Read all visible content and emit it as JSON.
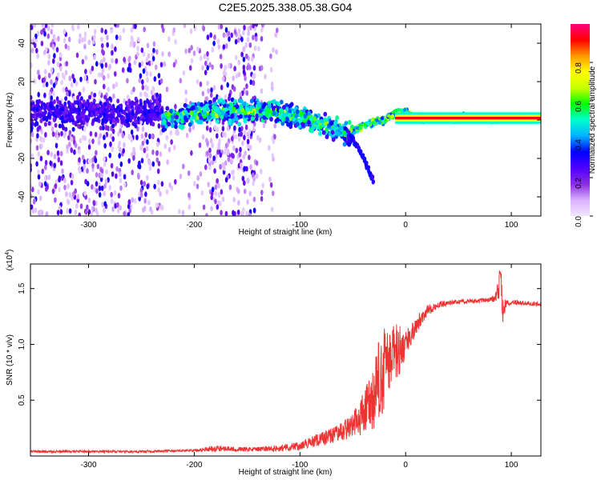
{
  "chart_data": [
    {
      "type": "heatmap",
      "title": "C2E5.2025.338.05.38.G04",
      "xlabel": "Height of straight line (km)",
      "ylabel": "Frequency (Hz)",
      "xlim": [
        -355,
        128
      ],
      "ylim": [
        -50,
        50
      ],
      "xticks": [
        -300,
        -200,
        -100,
        0,
        100
      ],
      "yticks": [
        -40,
        -20,
        0,
        20,
        40
      ],
      "colorbar": {
        "label": "Normalized spectral amplitude",
        "range": [
          0,
          1
        ],
        "ticks": [
          "0.0",
          "0.2",
          "0.4",
          "0.6",
          "0.8"
        ],
        "colors": [
          "#f0e6ff",
          "#d9b0ff",
          "#8a2be2",
          "#5000ff",
          "#0000ff",
          "#00b0ff",
          "#00ffd0",
          "#00ff00",
          "#c8ff00",
          "#ffff00",
          "#ff9900",
          "#ff0000",
          "#ff0080"
        ]
      },
      "ridge": {
        "x": [
          -230,
          -200,
          -170,
          -140,
          -110,
          -90,
          -70,
          -55,
          -45,
          -30,
          -20,
          -10,
          0,
          10,
          50,
          90,
          128
        ],
        "y": [
          1,
          3,
          4,
          5,
          3,
          0,
          -4,
          -8,
          -4,
          -1,
          0,
          3,
          4,
          1,
          1,
          1,
          1
        ],
        "peak_amplitude": 1.0
      },
      "tail": {
        "x": [
          -55,
          -50,
          -45,
          -40,
          -35,
          -30
        ],
        "y": [
          -8,
          -10,
          -14,
          -20,
          -26,
          -32
        ]
      }
    },
    {
      "type": "line",
      "xlabel": "Height of straight line (km)",
      "ylabel": "SNR (10 * v/v)",
      "y_scale_label": "(x10",
      "y_scale_exponent": "4",
      "xlim": [
        -355,
        128
      ],
      "ylim": [
        0,
        1.72
      ],
      "xticks": [
        -300,
        -200,
        -100,
        0,
        100
      ],
      "yticks": [
        "0.5",
        "1.0",
        "1.5"
      ],
      "series": [
        {
          "name": "SNR",
          "color": "#ee3333",
          "x": [
            -355,
            -300,
            -250,
            -200,
            -180,
            -160,
            -140,
            -120,
            -100,
            -80,
            -60,
            -50,
            -40,
            -30,
            -25,
            -20,
            -15,
            -10,
            -5,
            0,
            5,
            10,
            20,
            30,
            40,
            50,
            60,
            70,
            80,
            85,
            88,
            90,
            92,
            95,
            100,
            110,
            120,
            128
          ],
          "y": [
            0.04,
            0.04,
            0.04,
            0.05,
            0.07,
            0.06,
            0.06,
            0.07,
            0.09,
            0.15,
            0.22,
            0.28,
            0.38,
            0.5,
            0.7,
            0.78,
            0.85,
            0.92,
            0.96,
            1.0,
            1.08,
            1.18,
            1.3,
            1.35,
            1.37,
            1.38,
            1.39,
            1.39,
            1.4,
            1.42,
            1.5,
            1.6,
            1.3,
            1.36,
            1.38,
            1.37,
            1.36,
            1.36
          ],
          "noise": [
            0.01,
            0.01,
            0.01,
            0.01,
            0.03,
            0.02,
            0.02,
            0.03,
            0.04,
            0.06,
            0.08,
            0.12,
            0.2,
            0.3,
            0.38,
            0.38,
            0.3,
            0.28,
            0.22,
            0.12,
            0.1,
            0.08,
            0.05,
            0.03,
            0.02,
            0.02,
            0.02,
            0.02,
            0.02,
            0.04,
            0.1,
            0.15,
            0.12,
            0.04,
            0.02,
            0.02,
            0.02,
            0.02
          ]
        }
      ]
    }
  ]
}
